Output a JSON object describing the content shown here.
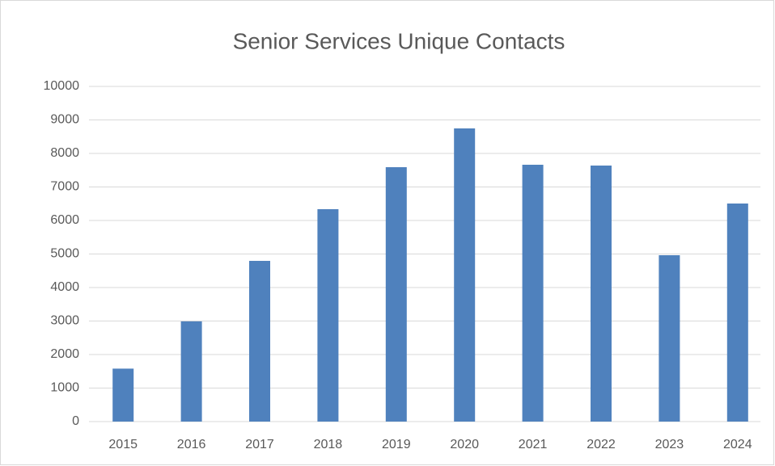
{
  "chart_data": {
    "type": "bar",
    "title": "Senior Services Unique Contacts",
    "categories": [
      "2015",
      "2016",
      "2017",
      "2018",
      "2019",
      "2020",
      "2021",
      "2022",
      "2023",
      "2024"
    ],
    "values": [
      1580,
      2990,
      4795,
      6337,
      7590,
      8747,
      7663,
      7639,
      4964,
      6506
    ],
    "color": "#4f81bd",
    "ylim": [
      0,
      10000
    ],
    "yticks": [
      0,
      1000,
      2000,
      3000,
      4000,
      5000,
      6000,
      7000,
      8000,
      9000,
      10000
    ],
    "grid": true
  }
}
